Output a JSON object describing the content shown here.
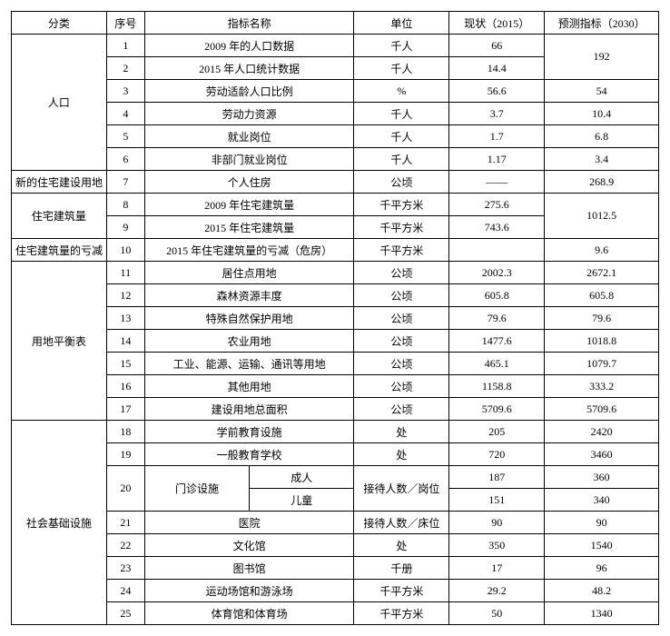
{
  "header": {
    "category": "分类",
    "index": "序号",
    "name": "指标名称",
    "unit": "单位",
    "current": "现状（2015）",
    "forecast": "预测指标（2030）"
  },
  "cat": {
    "c1": "人口",
    "c2": "新的住宅建设用地",
    "c3": "住宅建筑量",
    "c4": "住宅建筑量的亏减",
    "c5": "用地平衡表",
    "c6": "社会基础设施"
  },
  "r": {
    "1": {
      "idx": "1",
      "name": "2009 年的人口数据",
      "unit": "千人",
      "cur": "66",
      "fut": "192"
    },
    "2": {
      "idx": "2",
      "name": "2015 年人口统计数据",
      "unit": "千人",
      "cur": "14.4"
    },
    "3": {
      "idx": "3",
      "name": "劳动适龄人口比例",
      "unit": "%",
      "cur": "56.6",
      "fut": "54"
    },
    "4": {
      "idx": "4",
      "name": "劳动力资源",
      "unit": "千人",
      "cur": "3.7",
      "fut": "10.4"
    },
    "5": {
      "idx": "5",
      "name": "就业岗位",
      "unit": "千人",
      "cur": "1.7",
      "fut": "6.8"
    },
    "6": {
      "idx": "6",
      "name": "非部门就业岗位",
      "unit": "千人",
      "cur": "1.17",
      "fut": "3.4"
    },
    "7": {
      "idx": "7",
      "name": "个人住房",
      "unit": "公顷",
      "cur": "——",
      "fut": "268.9"
    },
    "8": {
      "idx": "8",
      "name": "2009 年住宅建筑量",
      "unit": "千平方米",
      "cur": "275.6",
      "fut": "1012.5"
    },
    "9": {
      "idx": "9",
      "name": "2015 年住宅建筑量",
      "unit": "千平方米",
      "cur": "743.6"
    },
    "10": {
      "idx": "10",
      "name": "2015 年住宅建筑量的亏减（危房）",
      "unit": "千平方米",
      "cur": "",
      "fut": "9.6"
    },
    "11": {
      "idx": "11",
      "name": "居住点用地",
      "unit": "公顷",
      "cur": "2002.3",
      "fut": "2672.1"
    },
    "12": {
      "idx": "12",
      "name": "森林资源丰度",
      "unit": "公顷",
      "cur": "605.8",
      "fut": "605.8"
    },
    "13": {
      "idx": "13",
      "name": "特殊自然保护用地",
      "unit": "公顷",
      "cur": "79.6",
      "fut": "79.6"
    },
    "14": {
      "idx": "14",
      "name": "农业用地",
      "unit": "公顷",
      "cur": "1477.6",
      "fut": "1018.8"
    },
    "15": {
      "idx": "15",
      "name": "工业、能源、运输、通讯等用地",
      "unit": "公顷",
      "cur": "465.1",
      "fut": "1079.7"
    },
    "16": {
      "idx": "16",
      "name": "其他用地",
      "unit": "公顷",
      "cur": "1158.8",
      "fut": "333.2"
    },
    "17": {
      "idx": "17",
      "name": "建设用地总面积",
      "unit": "公顷",
      "cur": "5709.6",
      "fut": "5709.6"
    },
    "18": {
      "idx": "18",
      "name": "学前教育设施",
      "unit": "处",
      "cur": "205",
      "fut": "2420"
    },
    "19": {
      "idx": "19",
      "name": "一般教育学校",
      "unit": "处",
      "cur": "720",
      "fut": "3460"
    },
    "20": {
      "idx": "20",
      "name": "门诊设施",
      "sub1": "成人",
      "sub2": "儿童",
      "unit": "接待人数／岗位",
      "cur1": "187",
      "fut1": "360",
      "cur2": "151",
      "fut2": "340"
    },
    "21": {
      "idx": "21",
      "name": "医院",
      "unit": "接待人数／床位",
      "cur": "90",
      "fut": "90"
    },
    "22": {
      "idx": "22",
      "name": "文化馆",
      "unit": "处",
      "cur": "350",
      "fut": "1540"
    },
    "23": {
      "idx": "23",
      "name": "图书馆",
      "unit": "千册",
      "cur": "17",
      "fut": "96"
    },
    "24": {
      "idx": "24",
      "name": "运动场馆和游泳场",
      "unit": "千平方米",
      "cur": "29.2",
      "fut": "48.2"
    },
    "25": {
      "idx": "25",
      "name": "体育馆和体育场",
      "unit": "千平方米",
      "cur": "50",
      "fut": "1340"
    }
  }
}
